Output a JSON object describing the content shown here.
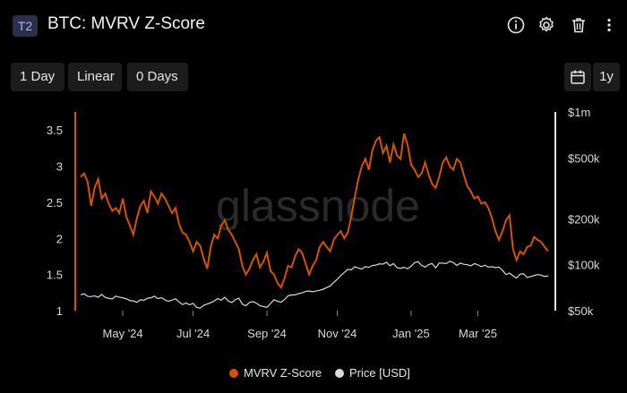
{
  "header": {
    "badge": "T2",
    "title": "BTC: MVRV Z-Score",
    "icons": [
      "info-icon",
      "gear-icon",
      "trash-icon",
      "more-vertical-icon"
    ]
  },
  "controls": {
    "resolution": "1 Day",
    "scale": "Linear",
    "sma": "0 Days",
    "range": "1y"
  },
  "chart_data": {
    "type": "line",
    "watermark": "glassnode",
    "x_ticks": [
      "May '24",
      "Jul '24",
      "Sep '24",
      "Nov '24",
      "Jan '25",
      "Mar '25"
    ],
    "left_axis": {
      "ticks": [
        "1",
        "1.5",
        "2",
        "2.5",
        "3",
        "3.5"
      ],
      "range": [
        1,
        3.75
      ]
    },
    "right_axis": {
      "ticks": [
        "$50k",
        "$100k",
        "$200k",
        "$500k",
        "$1m"
      ],
      "scale": "log",
      "range": [
        50000,
        1000000
      ]
    },
    "colors": {
      "mvrv": "#d35400",
      "price": "#d9d9d9",
      "bg": "#000000"
    },
    "series": [
      {
        "name": "MVRV Z-Score",
        "axis": "left",
        "values": [
          2.85,
          2.9,
          2.78,
          2.45,
          2.7,
          2.82,
          2.55,
          2.62,
          2.48,
          2.38,
          2.42,
          2.35,
          2.55,
          2.3,
          2.18,
          2.05,
          2.28,
          2.45,
          2.52,
          2.35,
          2.65,
          2.58,
          2.48,
          2.62,
          2.55,
          2.45,
          2.35,
          2.42,
          2.2,
          2.08,
          2.05,
          1.95,
          1.82,
          1.95,
          1.9,
          1.72,
          1.58,
          1.88,
          2.05,
          2.0,
          2.18,
          2.25,
          2.12,
          2.05,
          1.95,
          1.85,
          1.62,
          1.5,
          1.58,
          1.7,
          1.78,
          1.6,
          1.68,
          1.8,
          1.55,
          1.5,
          1.38,
          1.32,
          1.45,
          1.62,
          1.6,
          1.75,
          1.85,
          1.8,
          1.65,
          1.5,
          1.62,
          1.7,
          1.88,
          1.95,
          1.88,
          1.82,
          1.98,
          2.05,
          2.1,
          2.0,
          2.08,
          2.3,
          2.58,
          2.82,
          3.0,
          3.1,
          2.95,
          3.22,
          3.35,
          3.4,
          3.18,
          3.28,
          3.05,
          3.3,
          3.15,
          3.1,
          3.45,
          3.3,
          3.02,
          2.95,
          2.85,
          2.9,
          3.05,
          2.88,
          2.75,
          2.7,
          2.85,
          3.05,
          3.12,
          3.0,
          2.95,
          3.1,
          3.05,
          2.88,
          2.72,
          2.65,
          2.55,
          2.58,
          2.48,
          2.5,
          2.42,
          2.28,
          2.1,
          1.98,
          2.1,
          2.25,
          2.32,
          1.85,
          1.7,
          1.82,
          1.78,
          1.88,
          1.9,
          2.02,
          1.98,
          1.95,
          1.88,
          1.82
        ]
      },
      {
        "name": "Price [USD]",
        "axis": "right",
        "values": [
          63500,
          64500,
          62000,
          61800,
          62500,
          61200,
          63800,
          61000,
          60200,
          59600,
          62200,
          61300,
          60600,
          59800,
          58200,
          57900,
          56700,
          59000,
          58400,
          60300,
          60700,
          62100,
          59900,
          60800,
          58700,
          57600,
          58500,
          59800,
          57000,
          54800,
          56100,
          54600,
          55800,
          52500,
          51900,
          54200,
          55300,
          56300,
          57800,
          60000,
          58600,
          61200,
          57800,
          56500,
          58900,
          60400,
          55200,
          53800,
          56500,
          57300,
          56000,
          53900,
          53200,
          52500,
          55600,
          58900,
          57600,
          56800,
          59100,
          62500,
          63300,
          63400,
          64600,
          65300,
          66800,
          67300,
          66500,
          67200,
          68000,
          69000,
          70800,
          72500,
          76500,
          80200,
          84800,
          89000,
          93200,
          92600,
          97000,
          95000,
          93500,
          97100,
          96000,
          98800,
          99300,
          101200,
          100800,
          103700,
          98400,
          101500,
          95600,
          94500,
          96200,
          94000,
          97500,
          103100,
          104700,
          98800,
          96400,
          100200,
          101600,
          95400,
          102400,
          102300,
          101700,
          105200,
          103300,
          98900,
          102300,
          100600,
          99900,
          98200,
          101600,
          99800,
          97000,
          99200,
          96300,
          97000,
          95600,
          96400,
          91800,
          86200,
          88000,
          84600,
          81700,
          86700,
          87100,
          82500,
          83400,
          84900,
          86100,
          85400,
          83700,
          84500
        ]
      }
    ]
  },
  "legend": {
    "mvrv_label": "MVRV Z-Score",
    "price_label": "Price [USD]"
  }
}
